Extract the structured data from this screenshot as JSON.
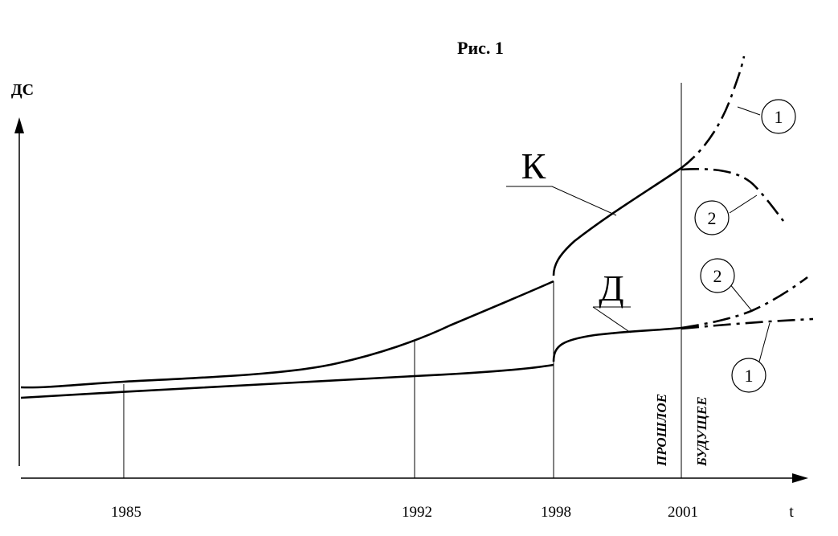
{
  "title": "Рис. 1",
  "y_axis_label": "ДС",
  "x_axis_label": "t",
  "x_ticks": [
    "1985",
    "1992",
    "1998",
    "2001"
  ],
  "curve_labels": {
    "k": "К",
    "d": "Д"
  },
  "period_labels": {
    "past": "ПРОШЛОЕ",
    "future": "БУДУЩЕЕ"
  },
  "scenario_markers": {
    "k_scenario_1": "1",
    "k_scenario_2": "2",
    "d_scenario_2": "2",
    "d_scenario_1": "1"
  },
  "colors": {
    "ink": "#000000",
    "background": "#ffffff"
  }
}
